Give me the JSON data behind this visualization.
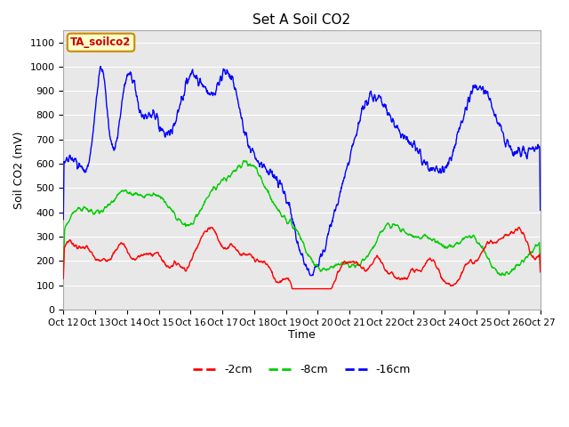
{
  "title": "Set A Soil CO2",
  "ylabel": "Soil CO2 (mV)",
  "xlabel": "Time",
  "annotation": "TA_soilco2",
  "ylim": [
    0,
    1150
  ],
  "yticks": [
    0,
    100,
    200,
    300,
    400,
    500,
    600,
    700,
    800,
    900,
    1000,
    1100
  ],
  "xlim_start": 0,
  "xlim_end": 15,
  "n_ticks": 16,
  "start_day": 12,
  "colors": {
    "red": "#ff0000",
    "green": "#00cc00",
    "blue": "#0000ff",
    "plot_bg": "#e8e8e8",
    "grid": "#ffffff",
    "annotation_bg": "#ffffcc",
    "annotation_border": "#cc8800",
    "annotation_text": "#cc0000"
  },
  "legend_labels": [
    "-2cm",
    "-8cm",
    "-16cm"
  ],
  "legend_linestyle": "--"
}
